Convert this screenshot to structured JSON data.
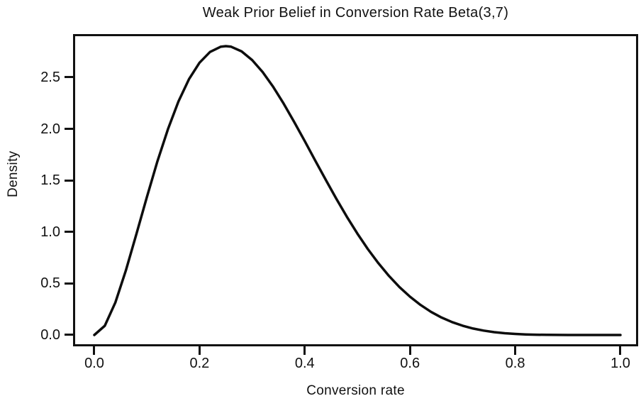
{
  "title": "Weak Prior Belief in Conversion Rate Beta(3,7)",
  "chart_data": {
    "type": "line",
    "title": "Weak Prior Belief in Conversion Rate Beta(3,7)",
    "xlabel": "Conversion rate",
    "ylabel": "Density",
    "x_ticks": [
      0.0,
      0.2,
      0.4,
      0.6,
      0.8,
      1.0
    ],
    "x_tick_labels": [
      "0.0",
      "0.2",
      "0.4",
      "0.6",
      "0.8",
      "1.0"
    ],
    "y_ticks": [
      0.0,
      0.5,
      1.0,
      1.5,
      2.0,
      2.5
    ],
    "y_tick_labels": [
      "0.0",
      "0.5",
      "1.0",
      "1.5",
      "2.0",
      "2.5"
    ],
    "xlim": [
      -0.0404,
      1.0337
    ],
    "ylim": [
      -0.1102,
      2.9201
    ],
    "grid": false,
    "legend": "none",
    "line_color": "#0d0d0d",
    "line_width": 3.5,
    "series": [
      {
        "name": "Beta(3,7) density",
        "x": [
          0.0,
          0.02,
          0.04,
          0.06,
          0.08,
          0.1,
          0.12,
          0.14,
          0.16,
          0.18,
          0.2,
          0.22,
          0.24,
          0.25,
          0.26,
          0.28,
          0.3,
          0.32,
          0.34,
          0.36,
          0.38,
          0.4,
          0.42,
          0.44,
          0.46,
          0.48,
          0.5,
          0.52,
          0.54,
          0.56,
          0.58,
          0.6,
          0.62,
          0.64,
          0.66,
          0.68,
          0.7,
          0.72,
          0.74,
          0.76,
          0.78,
          0.8,
          0.82,
          0.84,
          0.86,
          0.88,
          0.9,
          0.92,
          0.94,
          0.96,
          0.98,
          1.0
        ],
        "y": [
          0.0,
          0.0893,
          0.3156,
          0.6258,
          0.978,
          1.3392,
          1.6852,
          1.9982,
          2.2663,
          2.4822,
          2.6424,
          2.7467,
          2.7971,
          2.803,
          2.7973,
          2.7524,
          2.6683,
          2.5513,
          2.4078,
          2.2443,
          2.0669,
          1.8812,
          1.6923,
          1.5046,
          1.3222,
          1.1479,
          0.9844,
          0.8334,
          0.6962,
          0.5734,
          0.4653,
          0.3716,
          0.2917,
          0.2247,
          0.1696,
          0.1251,
          0.09,
          0.063,
          0.0426,
          0.0278,
          0.0174,
          0.0103,
          0.0058,
          0.003,
          0.0014,
          0.0006,
          0.0002,
          0.0001,
          0.0,
          0.0,
          0.0,
          0.0
        ]
      }
    ]
  }
}
